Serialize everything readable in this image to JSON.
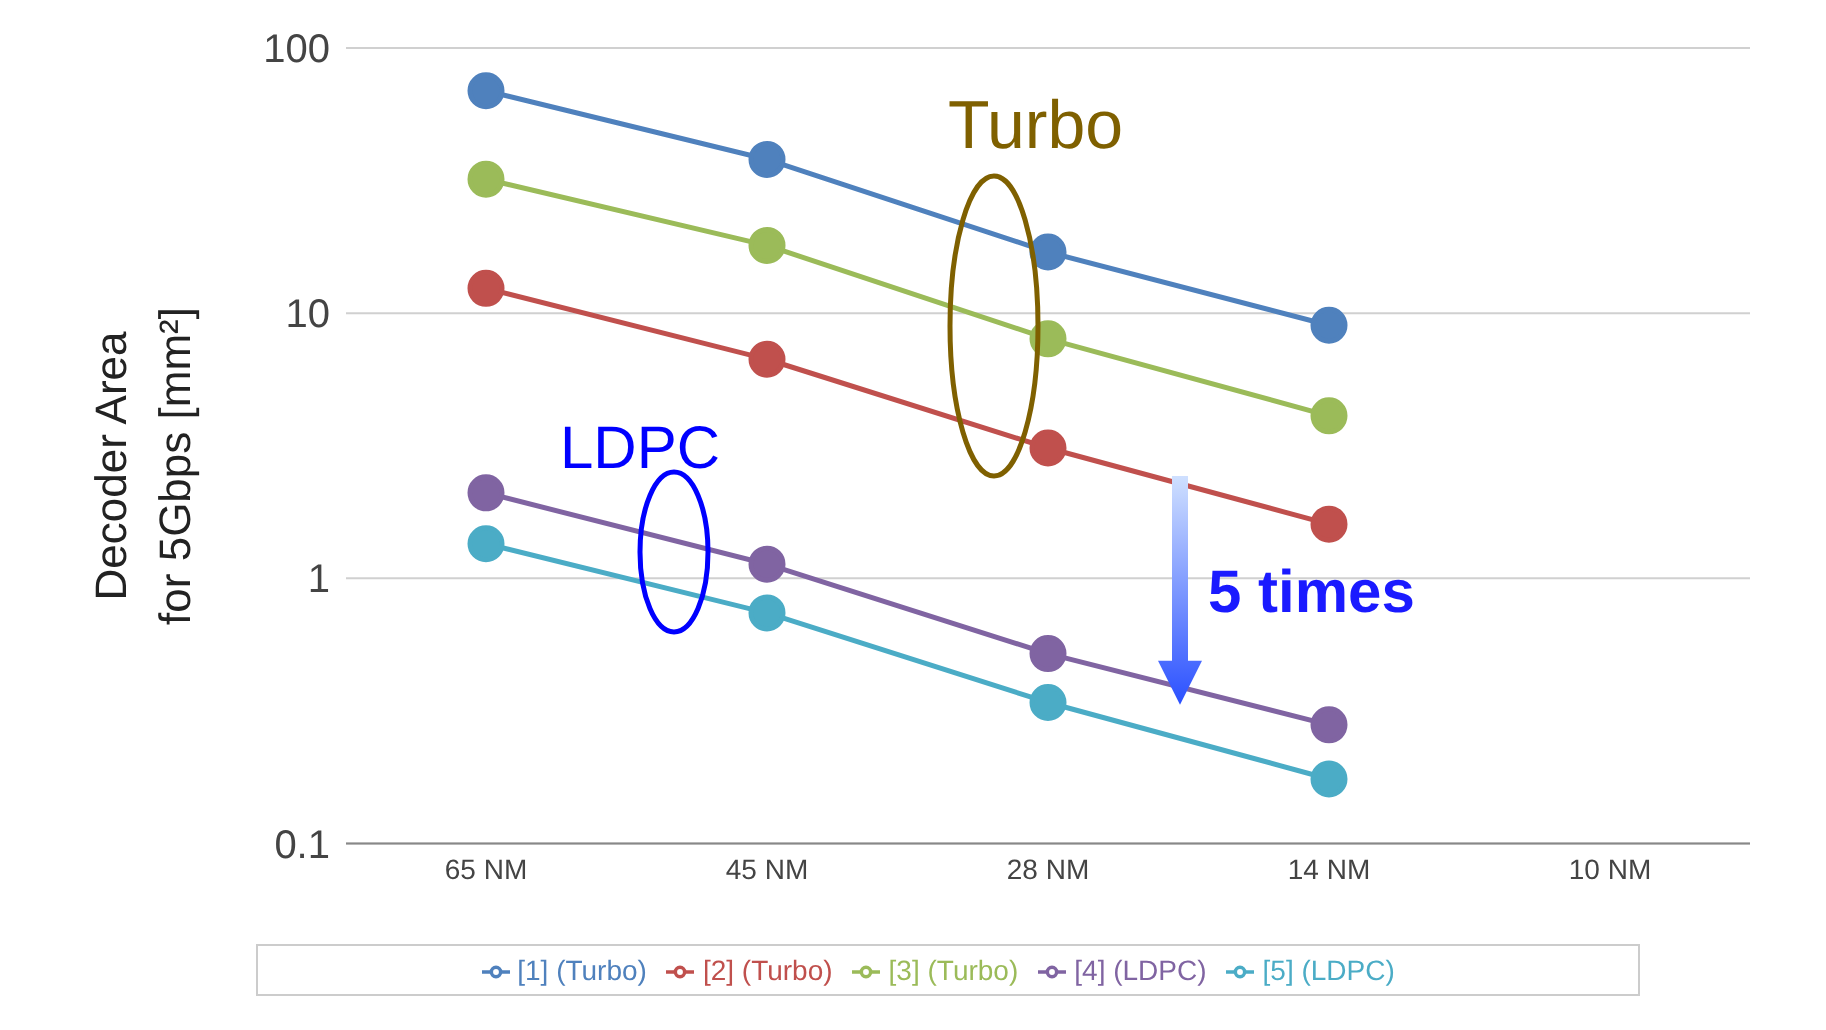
{
  "chart_data": {
    "type": "line",
    "ylabel": "Decoder Area\nfor 5Gbps [mm²]",
    "categories": [
      "65 NM",
      "45 NM",
      "28 NM",
      "14 NM",
      "10 NM"
    ],
    "series": [
      {
        "name": "[1] (Turbo)",
        "color": "#4f81bd",
        "values": [
          69,
          38,
          17,
          9,
          null
        ]
      },
      {
        "name": "[2] (Turbo)",
        "color": "#c0504d",
        "values": [
          12.4,
          6.7,
          3.1,
          1.6,
          null
        ]
      },
      {
        "name": "[3] (Turbo)",
        "color": "#9bbb59",
        "values": [
          32,
          18,
          8,
          4.1,
          null
        ]
      },
      {
        "name": "[4] (LDPC)",
        "color": "#8064a2",
        "values": [
          2.1,
          1.13,
          0.52,
          0.28,
          null
        ]
      },
      {
        "name": "[5] (LDPC)",
        "color": "#4bacc6",
        "values": [
          1.35,
          0.74,
          0.34,
          0.175,
          null
        ]
      }
    ],
    "log": "y",
    "ylim": [
      0.1,
      100
    ],
    "yticks": [
      0.1,
      1,
      10,
      100
    ],
    "grid": "y",
    "legend": "bottom",
    "marker": "circle",
    "line_style": "solid",
    "annotations": [
      "Turbo",
      "LDPC",
      {
        "text": "5 times",
        "y": 0.33
      }
    ]
  }
}
